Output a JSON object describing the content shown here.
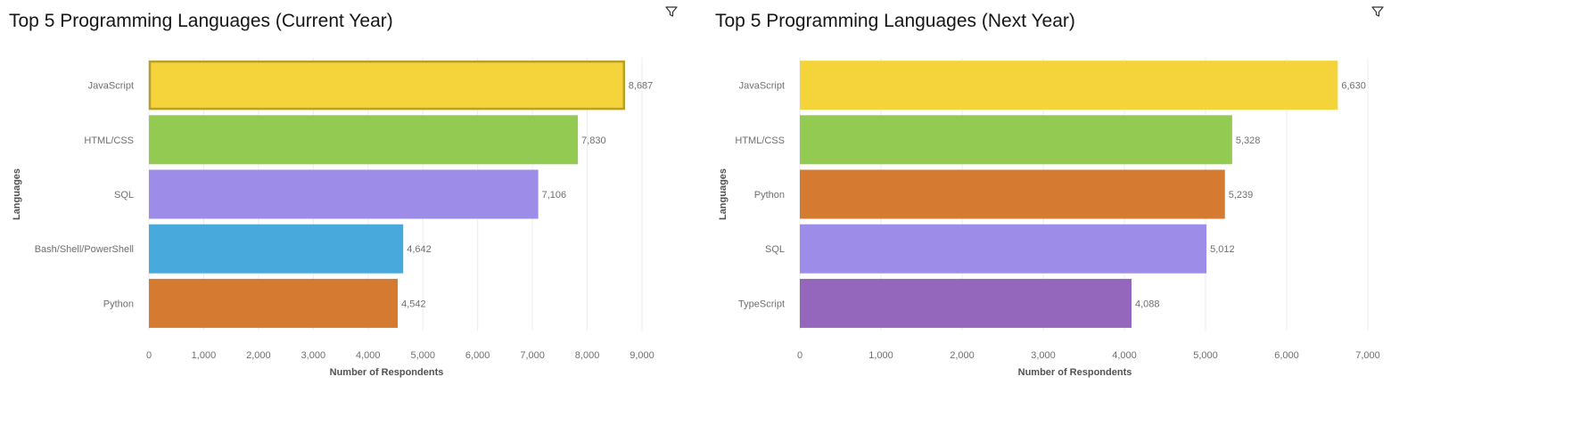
{
  "chart_data": [
    {
      "type": "bar",
      "orientation": "horizontal",
      "title": "Top 5 Programming Languages (Current Year)",
      "xlabel": "Number of Respondents",
      "ylabel": "Languages",
      "categories": [
        "JavaScript",
        "HTML/CSS",
        "SQL",
        "Bash/Shell/PowerShell",
        "Python"
      ],
      "values": [
        8687,
        7830,
        7106,
        4642,
        4542
      ],
      "value_labels": [
        "8,687",
        "7,830",
        "7,106",
        "4,642",
        "4,542"
      ],
      "colors": [
        "#f5d33a",
        "#93cb52",
        "#9e8ce9",
        "#47a9dc",
        "#d57b31"
      ],
      "highlighted": "JavaScript",
      "xlim": [
        0,
        9000
      ],
      "xticks": [
        0,
        1000,
        2000,
        3000,
        4000,
        5000,
        6000,
        7000,
        8000,
        9000
      ],
      "xtick_labels": [
        "0",
        "1,000",
        "2,000",
        "3,000",
        "4,000",
        "5,000",
        "6,000",
        "7,000",
        "8,000",
        "9,000"
      ],
      "grid": "vertical",
      "legend": "none"
    },
    {
      "type": "bar",
      "orientation": "horizontal",
      "title": "Top 5 Programming Languages (Next Year)",
      "xlabel": "Number of Respondents",
      "ylabel": "Languages",
      "categories": [
        "JavaScript",
        "HTML/CSS",
        "Python",
        "SQL",
        "TypeScript"
      ],
      "values": [
        6630,
        5328,
        5239,
        5012,
        4088
      ],
      "value_labels": [
        "6,630",
        "5,328",
        "5,239",
        "5,012",
        "4,088"
      ],
      "colors": [
        "#f5d33a",
        "#93cb52",
        "#d57b31",
        "#9e8ce9",
        "#9467bd"
      ],
      "highlighted": "",
      "xlim": [
        0,
        7000
      ],
      "xticks": [
        0,
        1000,
        2000,
        3000,
        4000,
        5000,
        6000,
        7000
      ],
      "xtick_labels": [
        "0",
        "1,000",
        "2,000",
        "3,000",
        "4,000",
        "5,000",
        "6,000",
        "7,000"
      ],
      "grid": "vertical",
      "legend": "none"
    }
  ],
  "icons": {
    "filter": "filter-icon"
  }
}
